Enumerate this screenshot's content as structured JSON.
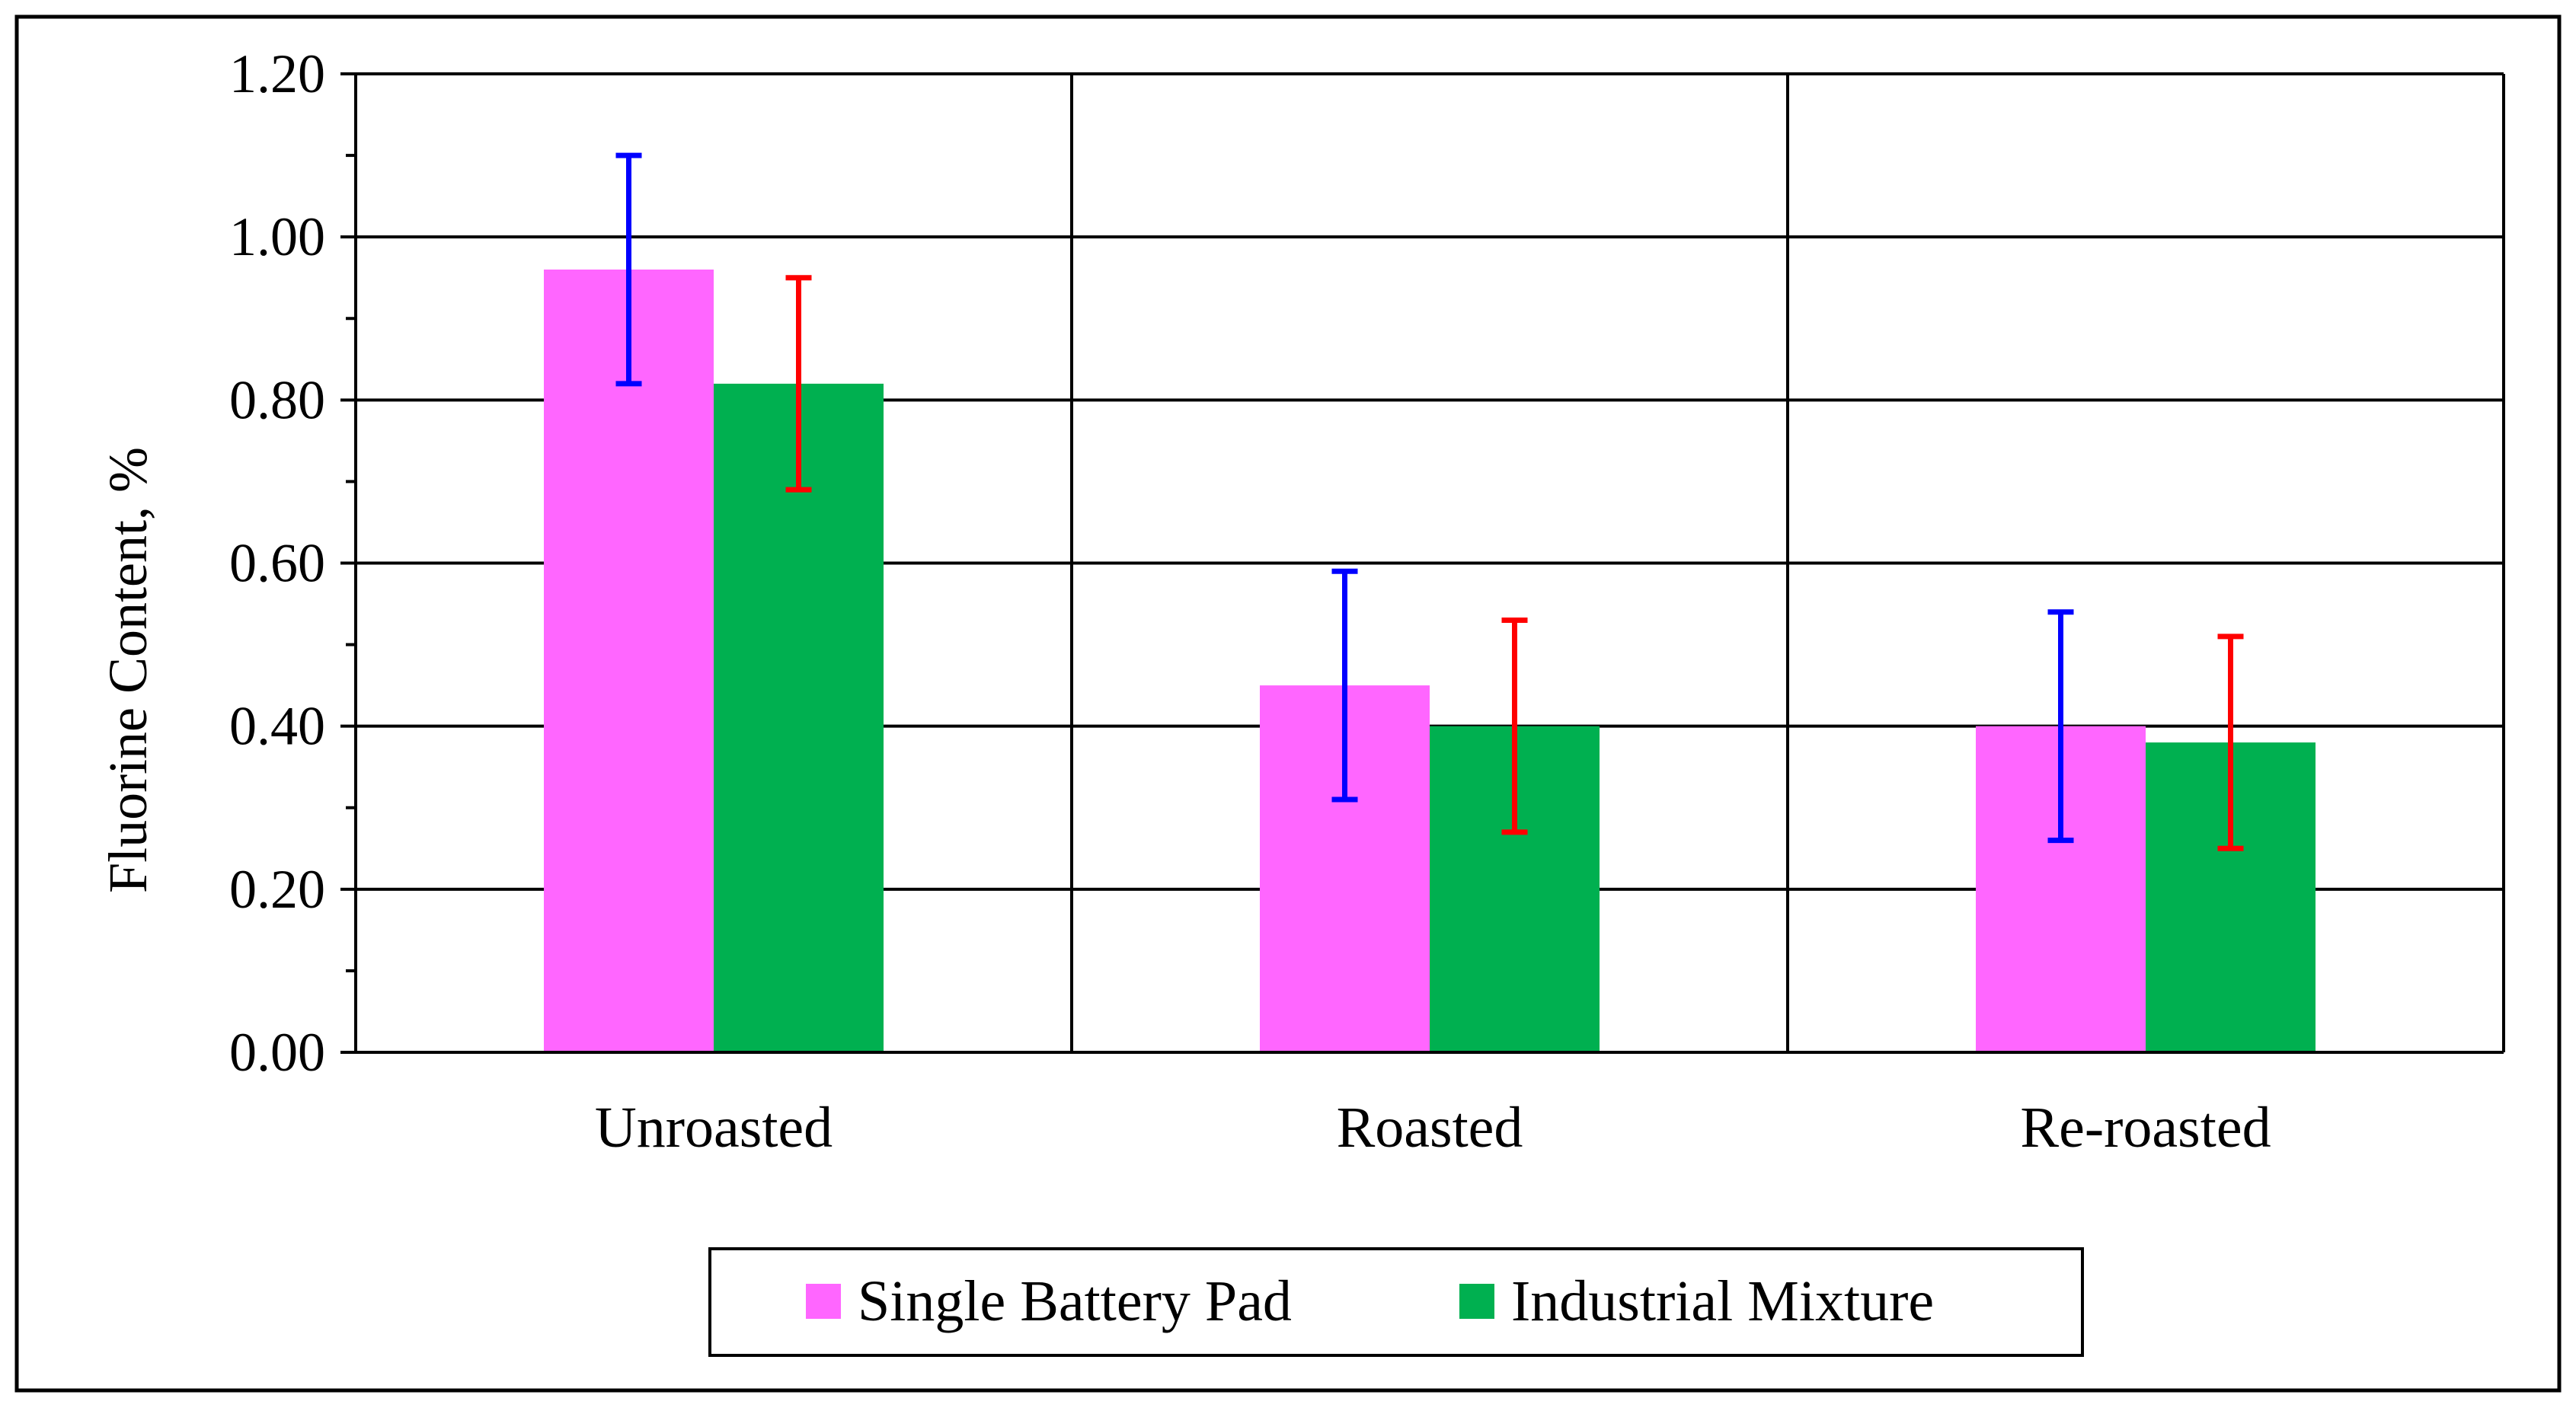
{
  "chart_data": {
    "type": "bar",
    "title": "",
    "xlabel": "",
    "ylabel": "Fluorine Content, %",
    "ylim": [
      0,
      1.2
    ],
    "yticks": [
      "0.00",
      "0.20",
      "0.40",
      "0.60",
      "0.80",
      "1.00",
      "1.20"
    ],
    "categories": [
      "Unroasted",
      "Roasted",
      "Re-roasted"
    ],
    "grid": true,
    "legend_position": "bottom",
    "series": [
      {
        "name": "Single Battery Pad",
        "color": "#ff66ff",
        "error_color": "#0000ff",
        "values": [
          0.96,
          0.45,
          0.4
        ],
        "error_low": [
          0.82,
          0.31,
          0.26
        ],
        "error_high": [
          1.1,
          0.59,
          0.54
        ]
      },
      {
        "name": "Industrial Mixture",
        "color": "#00b050",
        "error_color": "#ff0000",
        "values": [
          0.82,
          0.4,
          0.38
        ],
        "error_low": [
          0.69,
          0.27,
          0.25
        ],
        "error_high": [
          0.95,
          0.53,
          0.51
        ]
      }
    ]
  }
}
